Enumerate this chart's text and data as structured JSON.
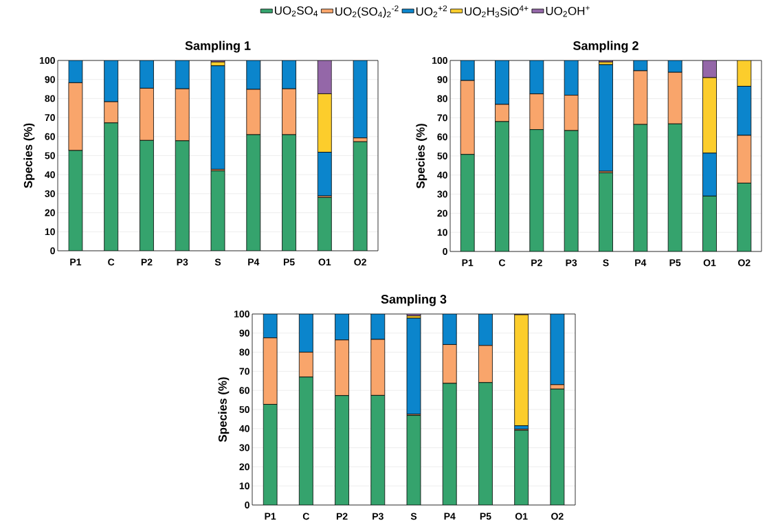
{
  "chart_data": [
    {
      "type": "bar",
      "title": "Sampling 1",
      "ylabel": "Species (%)",
      "stacked": true,
      "grid": "y",
      "legend": "top",
      "categories": [
        "P1",
        "C",
        "P2",
        "P3",
        "S",
        "P4",
        "P5",
        "O1",
        "O2"
      ],
      "ylim": [
        0,
        100
      ],
      "yticks": [
        0,
        10,
        20,
        30,
        40,
        50,
        60,
        70,
        80,
        90,
        100
      ],
      "series": [
        {
          "name": "UO$_{2}$SO$_{4}$",
          "color": "#35a36d",
          "values": [
            52.7,
            67.2,
            58,
            57.8,
            42,
            61,
            61,
            28,
            57.3
          ]
        },
        {
          "name": "UO$_{2}$(SO$_{4}$)$_{2}$$^{-2}$",
          "color": "#f9a56b",
          "values": [
            35.6,
            11.1,
            27.4,
            27.3,
            0.8,
            23.8,
            24.1,
            0.8,
            2.0
          ]
        },
        {
          "name": "UO$_{2}$$^{+2}$",
          "color": "#0b85cc",
          "values": [
            11.7,
            21.7,
            14.6,
            14.9,
            54.4,
            15.2,
            14.9,
            23,
            40.7
          ]
        },
        {
          "name": "UO$_{2}$H$_{3}$SiO$^{4+}$",
          "color": "#fccd2c",
          "values": [
            0,
            0,
            0,
            0,
            2.0,
            0,
            0,
            30.7,
            0
          ]
        },
        {
          "name": "UO$_{2}$OH$^{+}$",
          "color": "#9467a8",
          "values": [
            0,
            0,
            0,
            0,
            0.8,
            0,
            0,
            17.5,
            0
          ]
        }
      ]
    },
    {
      "type": "bar",
      "title": "Sampling 2",
      "ylabel": "Species (%)",
      "stacked": true,
      "grid": "y",
      "categories": [
        "P1",
        "C",
        "P2",
        "P3",
        "S",
        "P4",
        "P5",
        "O1",
        "O2"
      ],
      "ylim": [
        0,
        100
      ],
      "yticks": [
        0,
        10,
        20,
        30,
        40,
        50,
        60,
        70,
        80,
        90,
        100
      ],
      "series": [
        {
          "color": "#35a36d",
          "values": [
            50.8,
            68,
            63.8,
            63.3,
            41.2,
            66.5,
            66.8,
            29,
            35.8
          ]
        },
        {
          "color": "#f9a56b",
          "values": [
            38.7,
            9,
            18.7,
            18.5,
            0.8,
            28.1,
            27,
            0,
            25
          ]
        },
        {
          "color": "#0b85cc",
          "values": [
            10.5,
            23,
            17.5,
            18.2,
            55.8,
            5.4,
            6.2,
            22.5,
            25.7
          ]
        },
        {
          "color": "#fccd2c",
          "values": [
            0,
            0,
            0,
            0,
            1.4,
            0,
            0,
            39.5,
            13.5
          ]
        },
        {
          "color": "#9467a8",
          "values": [
            0,
            0,
            0,
            0,
            0.8,
            0,
            0,
            9,
            0
          ]
        }
      ]
    },
    {
      "type": "bar",
      "title": "Sampling 3",
      "ylabel": "Species (%)",
      "stacked": true,
      "grid": "y",
      "categories": [
        "P1",
        "C",
        "P2",
        "P3",
        "S",
        "P4",
        "P5",
        "O1",
        "O2"
      ],
      "ylim": [
        0,
        100
      ],
      "yticks": [
        0,
        10,
        20,
        30,
        40,
        50,
        60,
        70,
        80,
        90,
        100
      ],
      "series": [
        {
          "color": "#35a36d",
          "values": [
            52.7,
            67,
            57.3,
            57.4,
            46.9,
            63.7,
            64.1,
            39.1,
            60.7
          ]
        },
        {
          "color": "#f9a56b",
          "values": [
            34.8,
            13,
            29.1,
            29.3,
            0.6,
            20.3,
            19.4,
            0.6,
            2.3
          ]
        },
        {
          "color": "#0b85cc",
          "values": [
            12.5,
            20,
            13.6,
            13.3,
            50.3,
            16,
            16.5,
            1.8,
            37
          ]
        },
        {
          "color": "#fccd2c",
          "values": [
            0,
            0,
            0,
            0,
            1.2,
            0,
            0,
            58.1,
            0
          ]
        },
        {
          "color": "#9467a8",
          "values": [
            0,
            0,
            0,
            0,
            1.0,
            0,
            0,
            0.4,
            0
          ]
        }
      ]
    }
  ]
}
